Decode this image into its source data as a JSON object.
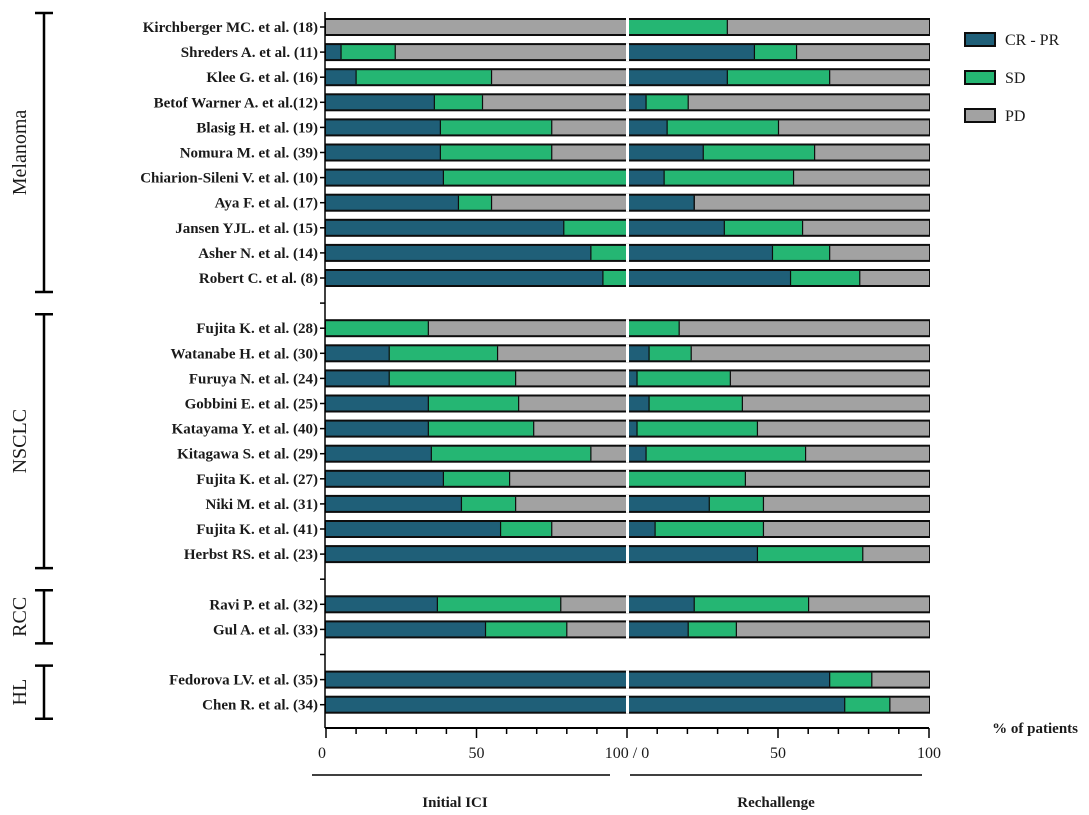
{
  "chart_data": {
    "type": "bar",
    "stacked": true,
    "orientation": "horizontal",
    "panels": [
      "Initial ICI",
      "Rechallenge"
    ],
    "panel_tick_labels": {
      "Initial ICI": [
        "0",
        "50",
        "100"
      ],
      "Rechallenge": [
        "0",
        "50",
        "100"
      ]
    },
    "joint_tick_label": "100 / 0",
    "x_axis_label": "% of patients",
    "xlim": [
      0,
      100
    ],
    "legend": {
      "position": "top-right",
      "entries": [
        {
          "name": "CR - PR",
          "color": "#1f5f78"
        },
        {
          "name": "SD",
          "color": "#25b673"
        },
        {
          "name": "PD",
          "color": "#a2a2a2"
        }
      ]
    },
    "groups": [
      {
        "name": "Melanoma",
        "studies": [
          {
            "label": "Kirchberger MC. et al. (18)",
            "initial": [
              0,
              0,
              100
            ],
            "rechallenge": [
              0,
              33,
              67
            ]
          },
          {
            "label": "Shreders A. et al. (11)",
            "initial": [
              5,
              18,
              77
            ],
            "rechallenge": [
              42,
              14,
              44
            ]
          },
          {
            "label": "Klee G. et al. (16)",
            "initial": [
              10,
              45,
              45
            ],
            "rechallenge": [
              33,
              34,
              33
            ]
          },
          {
            "label": "Betof Warner A. et al.(12)",
            "initial": [
              36,
              16,
              48
            ],
            "rechallenge": [
              6,
              14,
              80
            ]
          },
          {
            "label": "Blasig H. et al. (19)",
            "initial": [
              38,
              37,
              25
            ],
            "rechallenge": [
              13,
              37,
              50
            ]
          },
          {
            "label": "Nomura M. et al. (39)",
            "initial": [
              38,
              37,
              25
            ],
            "rechallenge": [
              25,
              37,
              38
            ]
          },
          {
            "label": "Chiarion-Sileni V. et al. (10)",
            "initial": [
              39,
              61,
              0
            ],
            "rechallenge": [
              12,
              43,
              45
            ]
          },
          {
            "label": "Aya F. et al. (17)",
            "initial": [
              44,
              11,
              45
            ],
            "rechallenge": [
              22,
              0,
              78
            ]
          },
          {
            "label": "Jansen YJL. et al. (15)",
            "initial": [
              79,
              21,
              0
            ],
            "rechallenge": [
              32,
              26,
              42
            ]
          },
          {
            "label": "Asher N. et al. (14)",
            "initial": [
              88,
              12,
              0
            ],
            "rechallenge": [
              48,
              19,
              33
            ]
          },
          {
            "label": "Robert C. et al. (8)",
            "initial": [
              92,
              8,
              0
            ],
            "rechallenge": [
              54,
              23,
              23
            ]
          }
        ]
      },
      {
        "name": "NSCLC",
        "studies": [
          {
            "label": "Fujita K. et al. (28)",
            "initial": [
              0,
              34,
              66
            ],
            "rechallenge": [
              0,
              17,
              83
            ]
          },
          {
            "label": "Watanabe H. et al. (30)",
            "initial": [
              21,
              36,
              43
            ],
            "rechallenge": [
              7,
              14,
              79
            ]
          },
          {
            "label": "Furuya N. et al. (24)",
            "initial": [
              21,
              42,
              37
            ],
            "rechallenge": [
              3,
              31,
              66
            ]
          },
          {
            "label": "Gobbini E. et al. (25)",
            "initial": [
              34,
              30,
              36
            ],
            "rechallenge": [
              7,
              31,
              62
            ]
          },
          {
            "label": "Katayama Y. et al. (40)",
            "initial": [
              34,
              35,
              31
            ],
            "rechallenge": [
              3,
              40,
              57
            ]
          },
          {
            "label": "Kitagawa S. et al. (29)",
            "initial": [
              35,
              53,
              12
            ],
            "rechallenge": [
              6,
              53,
              41
            ]
          },
          {
            "label": "Fujita K. et al. (27)",
            "initial": [
              39,
              22,
              39
            ],
            "rechallenge": [
              0,
              39,
              61
            ]
          },
          {
            "label": "Niki M. et al. (31)",
            "initial": [
              45,
              18,
              37
            ],
            "rechallenge": [
              27,
              18,
              55
            ]
          },
          {
            "label": "Fujita K. et al. (41)",
            "initial": [
              58,
              17,
              25
            ],
            "rechallenge": [
              9,
              36,
              55
            ]
          },
          {
            "label": "Herbst RS. et al. (23)",
            "initial": [
              100,
              0,
              0
            ],
            "rechallenge": [
              43,
              35,
              22
            ]
          }
        ]
      },
      {
        "name": "RCC",
        "studies": [
          {
            "label": "Ravi P. et al. (32)",
            "initial": [
              37,
              41,
              22
            ],
            "rechallenge": [
              22,
              38,
              40
            ]
          },
          {
            "label": "Gul A. et al. (33)",
            "initial": [
              53,
              27,
              20
            ],
            "rechallenge": [
              20,
              16,
              64
            ]
          }
        ]
      },
      {
        "name": "HL",
        "studies": [
          {
            "label": "Fedorova LV. et al. (35)",
            "initial": [
              100,
              0,
              0
            ],
            "rechallenge": [
              67,
              14,
              19
            ]
          },
          {
            "label": "Chen R. et al. (34)",
            "initial": [
              100,
              0,
              0
            ],
            "rechallenge": [
              72,
              15,
              13
            ]
          }
        ]
      }
    ]
  }
}
